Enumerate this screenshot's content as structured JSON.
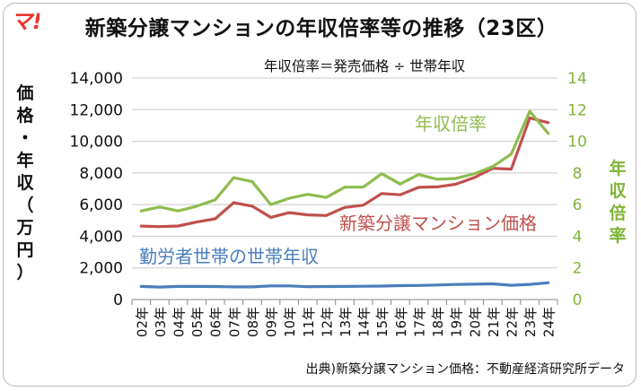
{
  "logo": {
    "text": "マ!",
    "color": "#e8372f"
  },
  "title": "新築分譲マンションの年収倍率等の推移（23区）",
  "formula": "年収倍率＝発売価格 ÷ 世帯年収",
  "ylabel_left": [
    "価",
    "格",
    "・",
    "年",
    "収",
    "（",
    "万",
    "円",
    "）"
  ],
  "ylabel_right": [
    "年",
    "収",
    "倍",
    "率"
  ],
  "source": "出典)新築分譲マンション価格：不動産経済研究所データ",
  "chart_data": {
    "type": "line",
    "x": [
      "02年",
      "03年",
      "04年",
      "05年",
      "06年",
      "07年",
      "08年",
      "09年",
      "10年",
      "11年",
      "12年",
      "13年",
      "14年",
      "15年",
      "16年",
      "17年",
      "18年",
      "19年",
      "20年",
      "21年",
      "22年",
      "23年",
      "24年"
    ],
    "left_axis": {
      "ylim": [
        0,
        14000
      ],
      "ticks": [
        "0",
        "2,000",
        "4,000",
        "6,000",
        "8,000",
        "10,000",
        "12,000",
        "14,000"
      ]
    },
    "right_axis": {
      "ylim": [
        0,
        14
      ],
      "ticks": [
        "0",
        "2",
        "4",
        "6",
        "8",
        "10",
        "12",
        "14"
      ],
      "color": "#7fb539"
    },
    "series": [
      {
        "name": "新築分譲マンション価格",
        "axis": "left",
        "color": "#c0504d",
        "values": [
          4640,
          4610,
          4650,
          4900,
          5100,
          6120,
          5900,
          5190,
          5490,
          5350,
          5310,
          5820,
          5960,
          6700,
          6620,
          7090,
          7120,
          7290,
          7710,
          8290,
          8240,
          11480,
          11180
        ]
      },
      {
        "name": "年収倍率",
        "axis": "right",
        "color": "#8fbc4e",
        "values": [
          5.6,
          5.85,
          5.6,
          5.9,
          6.3,
          7.7,
          7.45,
          6.0,
          6.4,
          6.65,
          6.45,
          7.1,
          7.1,
          7.95,
          7.3,
          7.9,
          7.6,
          7.65,
          7.95,
          8.4,
          9.2,
          11.9,
          10.5
        ]
      },
      {
        "name": "勤労者世帯の世帯年収",
        "axis": "left",
        "color": "#4a7ebb",
        "values": [
          830,
          790,
          830,
          830,
          820,
          800,
          800,
          860,
          860,
          810,
          820,
          830,
          840,
          850,
          880,
          890,
          920,
          950,
          970,
          990,
          900,
          960,
          1060
        ]
      }
    ]
  }
}
